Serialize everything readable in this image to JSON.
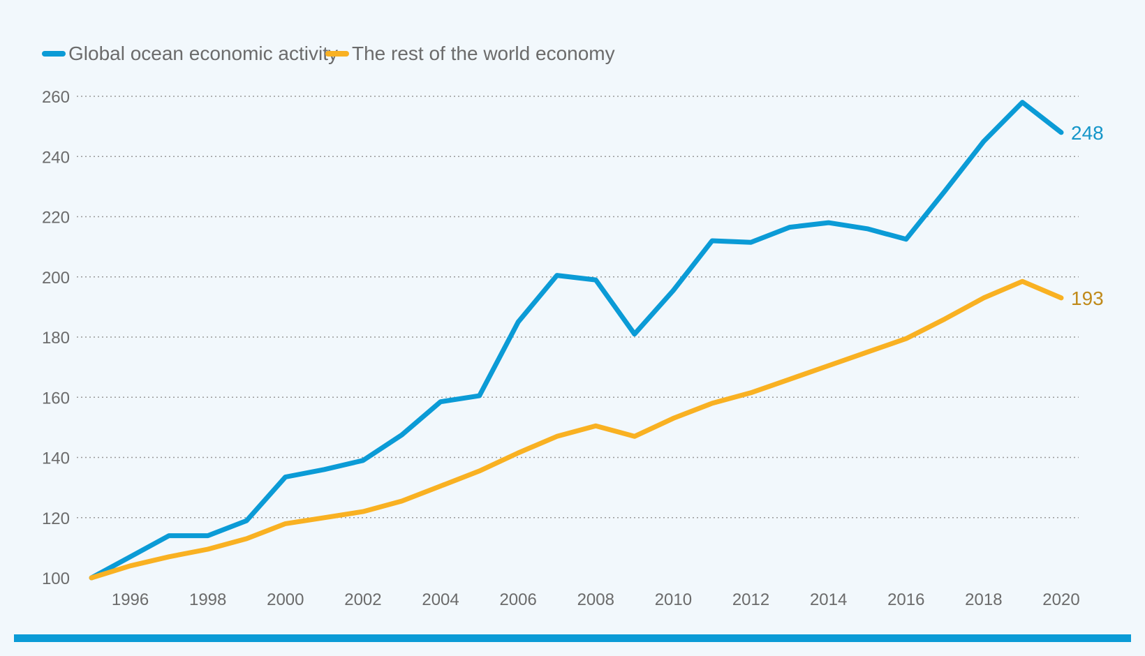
{
  "chart_data": {
    "type": "line",
    "title": "",
    "xlabel": "",
    "ylabel": "",
    "x": [
      1995,
      1996,
      1997,
      1998,
      1999,
      2000,
      2001,
      2002,
      2003,
      2004,
      2005,
      2006,
      2007,
      2008,
      2009,
      2010,
      2011,
      2012,
      2013,
      2014,
      2015,
      2016,
      2017,
      2018,
      2019,
      2020
    ],
    "xlim": [
      1995,
      2020
    ],
    "ylim": [
      100,
      260
    ],
    "x_ticks": [
      "1996",
      "1998",
      "2000",
      "2002",
      "2004",
      "2006",
      "2008",
      "2010",
      "2012",
      "2014",
      "2016",
      "2018",
      "2020"
    ],
    "y_ticks": [
      "100",
      "120",
      "140",
      "160",
      "180",
      "200",
      "220",
      "240",
      "260"
    ],
    "grid": true,
    "legend_position": "top-left",
    "series": [
      {
        "name": "Global ocean economic activity",
        "color": "#0b9bd6",
        "values": [
          100,
          107,
          114,
          114,
          119,
          133.5,
          136,
          139,
          147.5,
          158.5,
          160.5,
          185,
          200.5,
          199,
          181,
          195.5,
          212,
          211.5,
          216.5,
          218,
          216,
          212.5,
          228.5,
          245,
          258,
          248
        ],
        "end_label": "248"
      },
      {
        "name": "The rest of the world economy",
        "color": "#f9b122",
        "values": [
          100,
          104,
          107,
          109.5,
          113,
          118,
          120,
          122,
          125.5,
          130.5,
          135.5,
          141.5,
          147,
          150.5,
          147,
          153,
          158,
          161.5,
          166,
          170.5,
          175,
          179.5,
          186,
          193,
          198.5,
          193
        ],
        "end_label": "193"
      }
    ]
  },
  "colors": {
    "background": "#f2f8fc",
    "bottom_bar": "#0b9bd6",
    "end_label_ocean": "#1596c9",
    "end_label_rest": "#c08a1a"
  }
}
